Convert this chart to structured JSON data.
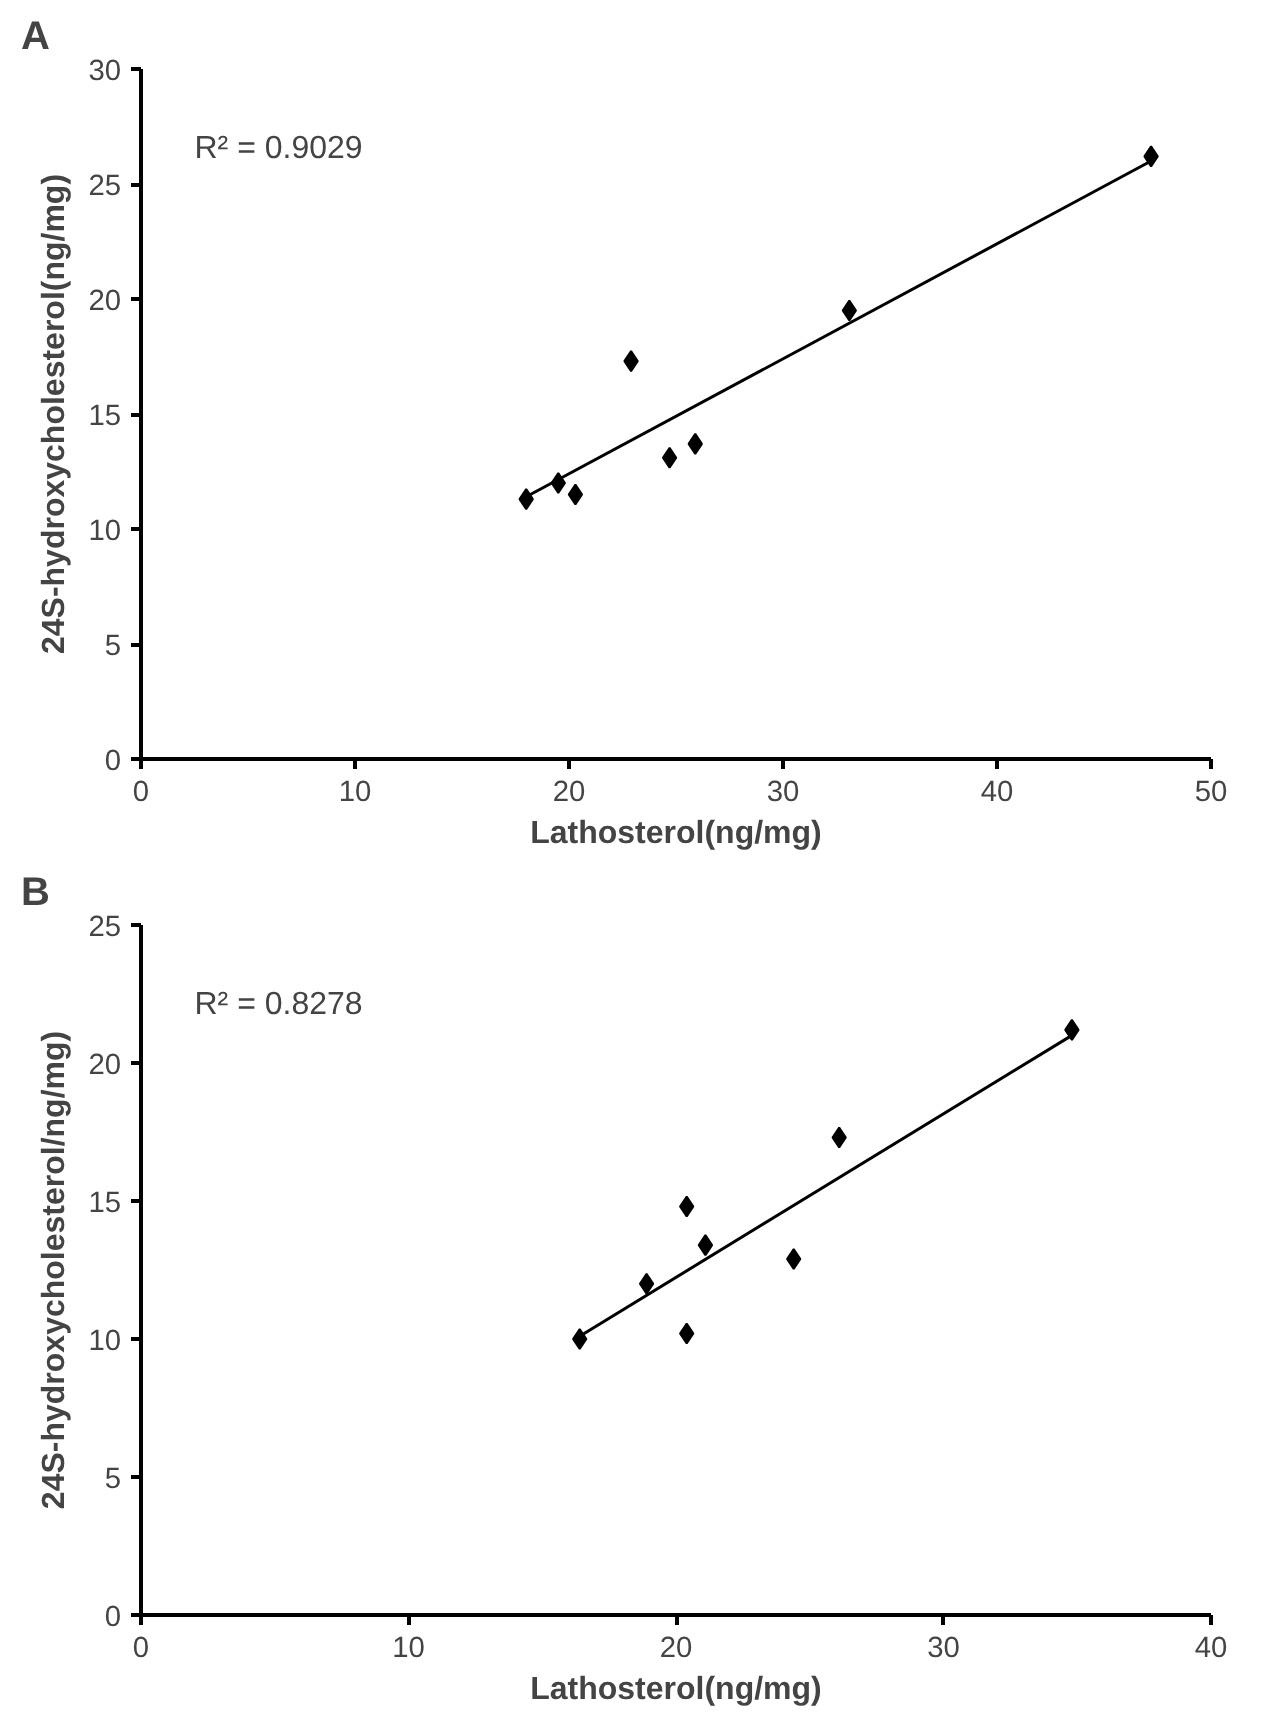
{
  "chart_data": [
    {
      "type": "scatter",
      "title": "A",
      "xlabel": "Lathosterol(ng/mg)",
      "ylabel": "24S-hydroxycholesterol(ng/mg)",
      "annotations": [
        "R² = 0.9029"
      ],
      "xlim": [
        0,
        50
      ],
      "ylim": [
        0,
        30
      ],
      "xticks": [
        0,
        10,
        20,
        30,
        40,
        50
      ],
      "yticks": [
        0,
        5,
        10,
        15,
        20,
        25,
        30
      ],
      "grid": false,
      "series": [
        {
          "marker": "diamond",
          "color": "#000000",
          "x": [
            18.0,
            19.5,
            20.3,
            22.9,
            24.7,
            25.9,
            33.1,
            47.2
          ],
          "values": [
            11.3,
            12.0,
            11.5,
            17.3,
            13.1,
            13.7,
            19.5,
            26.2
          ]
        },
        {
          "type": "line",
          "color": "#000000",
          "x": [
            18.0,
            47.2
          ],
          "values": [
            11.4,
            26.0
          ]
        }
      ]
    },
    {
      "type": "scatter",
      "title": "B",
      "xlabel": "Lathosterol(ng/mg)",
      "ylabel": "24S-hydroxycholesterol/ng/mg)",
      "annotations": [
        "R² = 0.8278"
      ],
      "xlim": [
        0,
        40
      ],
      "ylim": [
        0,
        25
      ],
      "xticks": [
        0,
        10,
        20,
        30,
        40
      ],
      "yticks": [
        0,
        5,
        10,
        15,
        20,
        25
      ],
      "grid": false,
      "series": [
        {
          "marker": "diamond",
          "color": "#000000",
          "x": [
            16.4,
            18.9,
            20.4,
            20.4,
            21.1,
            24.4,
            26.1,
            34.8
          ],
          "values": [
            10.0,
            12.0,
            14.8,
            10.2,
            13.4,
            12.9,
            17.3,
            21.2
          ]
        },
        {
          "type": "line",
          "color": "#000000",
          "x": [
            16.4,
            34.8
          ],
          "values": [
            10.1,
            21.0
          ]
        }
      ]
    }
  ]
}
